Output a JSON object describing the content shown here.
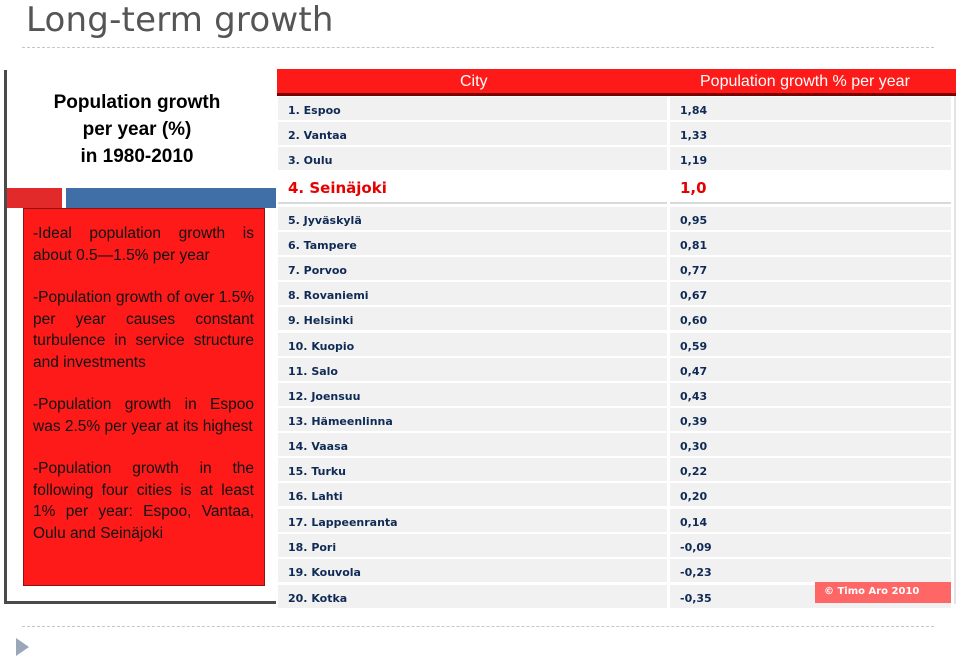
{
  "slide": {
    "title": "Long-term growth"
  },
  "left_panel": {
    "heading_lines": [
      "Population growth",
      "per year (%)",
      "in 1980-2010"
    ],
    "bullets": [
      "-Ideal population growth is about 0.5—1.5% per year",
      "-Population growth of over 1.5% per year causes constant turbulence in service structure and investments",
      "-Population growth in Espoo was 2.5% per year at its highest",
      "-Population growth in the following four cities is at least 1% per year: Espoo, Vantaa, Oulu and Seinäjoki"
    ]
  },
  "table": {
    "columns": [
      "City",
      "Population growth % per year"
    ],
    "highlight_color": "#e60000",
    "header_color": "#ff1a1a",
    "copyright": "© Timo Aro 2010"
  },
  "chart_data": {
    "type": "table",
    "columns": [
      "City",
      "Population growth % per year"
    ],
    "rows": [
      {
        "rank_label": "1. Espoo",
        "value": "1,84",
        "highlight": false
      },
      {
        "rank_label": "2. Vantaa",
        "value": "1,33",
        "highlight": false
      },
      {
        "rank_label": "3. Oulu",
        "value": "1,19",
        "highlight": false
      },
      {
        "rank_label": "4. Seinäjoki",
        "value": "1,0",
        "highlight": true
      },
      {
        "rank_label": "5. Jyväskylä",
        "value": "0,95",
        "highlight": false
      },
      {
        "rank_label": "6. Tampere",
        "value": "0,81",
        "highlight": false
      },
      {
        "rank_label": "7. Porvoo",
        "value": "0,77",
        "highlight": false
      },
      {
        "rank_label": "8. Rovaniemi",
        "value": "0,67",
        "highlight": false
      },
      {
        "rank_label": "9. Helsinki",
        "value": "0,60",
        "highlight": false
      },
      {
        "rank_label": "10. Kuopio",
        "value": "0,59",
        "highlight": false
      },
      {
        "rank_label": "11. Salo",
        "value": "0,47",
        "highlight": false
      },
      {
        "rank_label": "12. Joensuu",
        "value": "0,43",
        "highlight": false
      },
      {
        "rank_label": "13. Hämeenlinna",
        "value": "0,39",
        "highlight": false
      },
      {
        "rank_label": "14. Vaasa",
        "value": "0,30",
        "highlight": false
      },
      {
        "rank_label": "15. Turku",
        "value": "0,22",
        "highlight": false
      },
      {
        "rank_label": "16. Lahti",
        "value": "0,20",
        "highlight": false
      },
      {
        "rank_label": "17. Lappeenranta",
        "value": "0,14",
        "highlight": false
      },
      {
        "rank_label": "18. Pori",
        "value": "-0,09",
        "highlight": false
      },
      {
        "rank_label": "19. Kouvola",
        "value": "-0,23",
        "highlight": false
      },
      {
        "rank_label": "20. Kotka",
        "value": "-0,35",
        "highlight": false
      }
    ]
  }
}
